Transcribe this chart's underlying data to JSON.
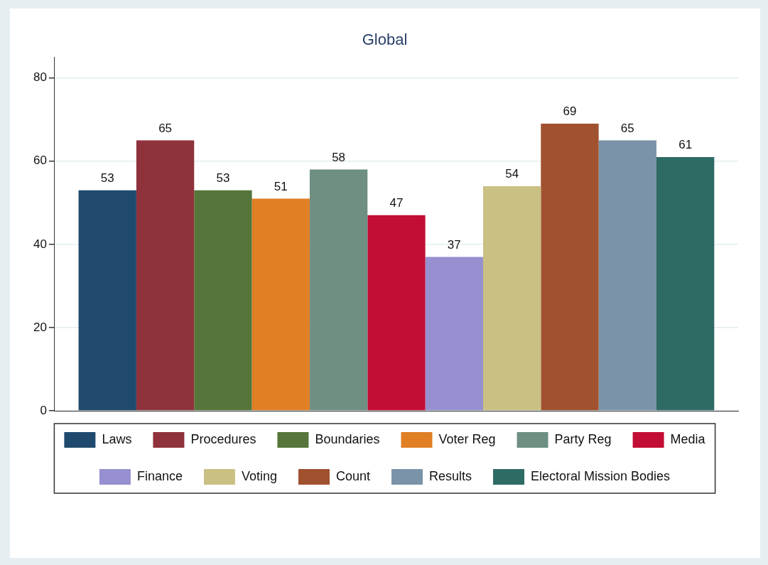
{
  "chart_data": {
    "type": "bar",
    "title": "Global",
    "categories": [
      null
    ],
    "series": [
      {
        "name": "Laws",
        "color": "#1f4a6e",
        "values": [
          53
        ]
      },
      {
        "name": "Procedures",
        "color": "#8f323c",
        "values": [
          65
        ]
      },
      {
        "name": "Boundaries",
        "color": "#55753a",
        "values": [
          53
        ]
      },
      {
        "name": "Voter Reg",
        "color": "#e07f24",
        "values": [
          51
        ]
      },
      {
        "name": "Party Reg",
        "color": "#6e8f82",
        "values": [
          58
        ]
      },
      {
        "name": "Media",
        "color": "#c20d35",
        "values": [
          47
        ]
      },
      {
        "name": "Finance",
        "color": "#9690d0",
        "values": [
          37
        ]
      },
      {
        "name": "Voting",
        "color": "#cbc084",
        "values": [
          54
        ]
      },
      {
        "name": "Count",
        "color": "#a0512f",
        "values": [
          69
        ]
      },
      {
        "name": "Results",
        "color": "#7b93a8",
        "values": [
          65
        ]
      },
      {
        "name": "Electoral Mission Bodies",
        "color": "#2e6b65",
        "values": [
          61
        ]
      }
    ],
    "ylim": [
      0,
      85
    ],
    "yticks": [
      0,
      20,
      40,
      60,
      80
    ],
    "grid": "y",
    "legend": "bottom",
    "data_labels": true
  }
}
